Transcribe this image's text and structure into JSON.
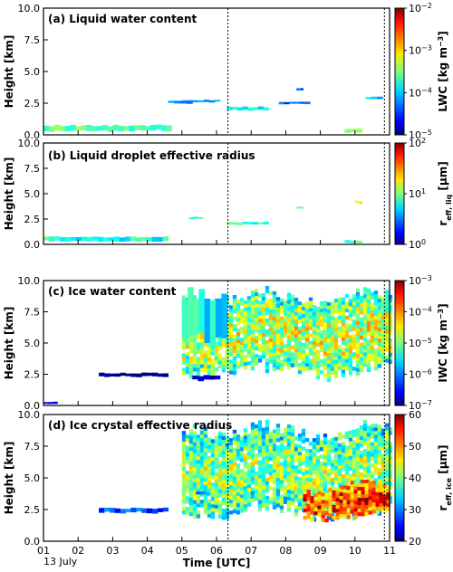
{
  "xaxis": {
    "label": "Time [UTC]",
    "ticks": [
      "01",
      "02",
      "03",
      "04",
      "05",
      "06",
      "07",
      "08",
      "09",
      "10",
      "11"
    ],
    "date_label": "13 July",
    "range": [
      1,
      11
    ]
  },
  "vlines": [
    6.33,
    10.85
  ],
  "panels": [
    {
      "title": "(a) Liquid water content",
      "ylabel": "Height [km]",
      "yticks": [
        "0.0",
        "2.5",
        "5.0",
        "7.5",
        "10.0"
      ],
      "cbar": {
        "label_main": "LWC [kg m",
        "label_sup": "−3",
        "label_end": "]",
        "ticks": [
          {
            "b": "10",
            "e": "−5"
          },
          {
            "b": "10",
            "e": "−4"
          },
          {
            "b": "10",
            "e": "−3"
          },
          {
            "b": "10",
            "e": "−2"
          }
        ]
      }
    },
    {
      "title": "(b) Liquid droplet effective radius",
      "ylabel": "Height [km]",
      "yticks": [
        "0.0",
        "2.5",
        "5.0",
        "7.5",
        "10.0"
      ],
      "cbar": {
        "label_main": "r",
        "label_sub": "eff, liq",
        "label_end": " [μm]",
        "ticks": [
          {
            "b": "10",
            "e": "0"
          },
          {
            "b": "10",
            "e": "1"
          },
          {
            "b": "10",
            "e": "2"
          }
        ]
      }
    },
    {
      "title": "(c) Ice water content",
      "ylabel": "Height [km]",
      "yticks": [
        "0.0",
        "2.5",
        "5.0",
        "7.5",
        "10.0"
      ],
      "cbar": {
        "label_main": "IWC [kg m",
        "label_sup": "−3",
        "label_end": "]",
        "ticks": [
          {
            "b": "10",
            "e": "−7"
          },
          {
            "b": "10",
            "e": "−6"
          },
          {
            "b": "10",
            "e": "−5"
          },
          {
            "b": "10",
            "e": "−4"
          },
          {
            "b": "10",
            "e": "−3"
          }
        ]
      }
    },
    {
      "title": "(d) Ice crystal effective radius",
      "ylabel": "Height [km]",
      "yticks": [
        "0.0",
        "2.5",
        "5.0",
        "7.5",
        "10.0"
      ],
      "cbar": {
        "label_main": "r",
        "label_sub": "eff, ice",
        "label_end": " [μm]",
        "ticks": [
          {
            "b": "20",
            "e": ""
          },
          {
            "b": "30",
            "e": ""
          },
          {
            "b": "40",
            "e": ""
          },
          {
            "b": "50",
            "e": ""
          },
          {
            "b": "60",
            "e": ""
          }
        ]
      }
    }
  ],
  "chart_data": {
    "type": "heatmap",
    "x_units": "hour (UTC)",
    "y_units": "km",
    "xlim": [
      1,
      11
    ],
    "ylim": [
      0,
      10
    ],
    "panels": [
      {
        "name": "(a) Liquid water content",
        "cbar_range": [
          -5,
          -2
        ],
        "cbar_scale": "log10",
        "features": [
          {
            "x": [
              1.0,
              4.7
            ],
            "y": [
              0.25,
              0.75
            ],
            "value": -3.6
          },
          {
            "x": [
              4.6,
              5.3
            ],
            "y": [
              2.45,
              2.7
            ],
            "value": -4.2
          },
          {
            "x": [
              5.0,
              6.1
            ],
            "y": [
              2.55,
              2.75
            ],
            "value": -4.3
          },
          {
            "x": [
              6.3,
              7.5
            ],
            "y": [
              1.9,
              2.2
            ],
            "value": -3.9
          },
          {
            "x": [
              7.8,
              8.7
            ],
            "y": [
              2.4,
              2.6
            ],
            "value": -4.3
          },
          {
            "x": [
              8.3,
              8.5
            ],
            "y": [
              3.5,
              3.7
            ],
            "value": -4.2
          },
          {
            "x": [
              9.7,
              10.2
            ],
            "y": [
              0.1,
              0.45
            ],
            "value": -3.2
          },
          {
            "x": [
              10.3,
              10.8
            ],
            "y": [
              2.8,
              3.0
            ],
            "value": -4.0
          }
        ]
      },
      {
        "name": "(b) Liquid droplet effective radius",
        "cbar_range": [
          0,
          2
        ],
        "cbar_scale": "log10",
        "features": [
          {
            "x": [
              1.0,
              4.6
            ],
            "y": [
              0.25,
              0.75
            ],
            "value": 0.8
          },
          {
            "x": [
              5.2,
              5.6
            ],
            "y": [
              2.5,
              2.7
            ],
            "value": 0.85
          },
          {
            "x": [
              6.3,
              7.5
            ],
            "y": [
              1.9,
              2.2
            ],
            "value": 0.85
          },
          {
            "x": [
              8.3,
              8.5
            ],
            "y": [
              3.5,
              3.7
            ],
            "value": 0.9
          },
          {
            "x": [
              10.0,
              10.2
            ],
            "y": [
              4.0,
              4.3
            ],
            "value": 1.2
          },
          {
            "x": [
              9.7,
              10.2
            ],
            "y": [
              0.1,
              0.4
            ],
            "value": 0.9
          }
        ]
      },
      {
        "name": "(c) Ice water content",
        "cbar_range": [
          -7,
          -3
        ],
        "cbar_scale": "log10",
        "features": [
          {
            "x": [
              5.0,
              11.0
            ],
            "y": [
              2.5,
              9.2
            ],
            "value": -5.0
          },
          {
            "x": [
              5.0,
              6.3
            ],
            "y": [
              5.0,
              9.0
            ],
            "value": -5.5
          },
          {
            "x": [
              2.6,
              4.6
            ],
            "y": [
              2.3,
              2.6
            ],
            "value": -7.0
          },
          {
            "x": [
              5.3,
              6.1
            ],
            "y": [
              2.0,
              2.4
            ],
            "value": -6.8
          },
          {
            "x": [
              1.0,
              1.4
            ],
            "y": [
              0.1,
              0.3
            ],
            "value": -6.8
          }
        ]
      },
      {
        "name": "(d) Ice crystal effective radius",
        "cbar_range": [
          20,
          60
        ],
        "cbar_scale": "linear",
        "features": [
          {
            "x": [
              5.0,
              11.0
            ],
            "y": [
              2.0,
              9.3
            ],
            "value": 38
          },
          {
            "x": [
              8.5,
              11.0
            ],
            "y": [
              2.0,
              4.5
            ],
            "value": 50
          },
          {
            "x": [
              2.6,
              4.6
            ],
            "y": [
              2.2,
              2.6
            ],
            "value": 28
          },
          {
            "x": [
              5.4,
              5.8
            ],
            "y": [
              3.6,
              3.9
            ],
            "value": 30
          }
        ]
      }
    ]
  }
}
